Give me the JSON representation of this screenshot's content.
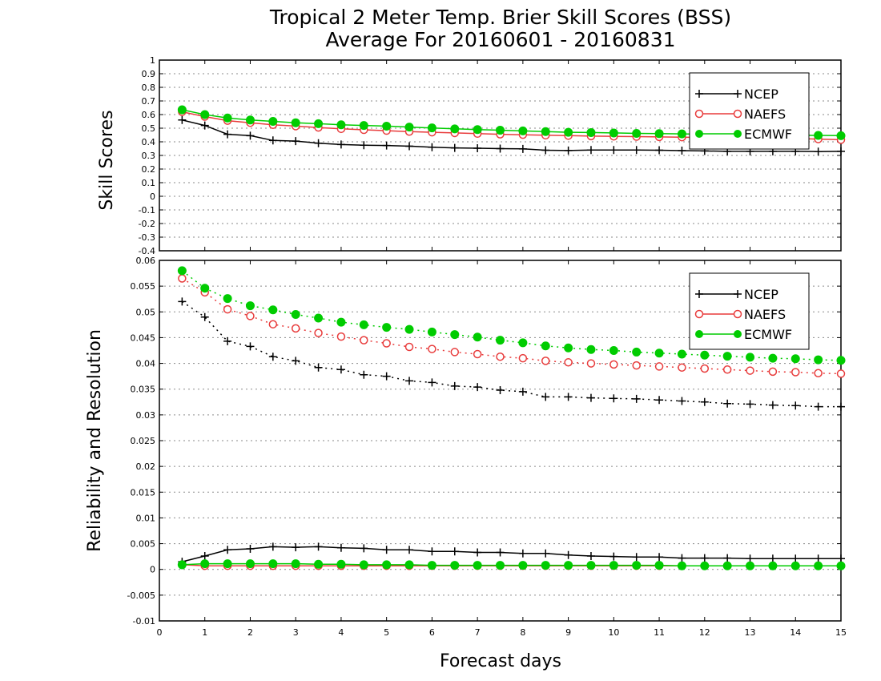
{
  "chart_data": {
    "title": "Tropical 2 Meter Temp. Brier Skill Scores (BSS)",
    "subtitle": "Average For 20160601 - 20160831",
    "xlabel": "Forecast days",
    "xlim": [
      0,
      15
    ],
    "x_ticks": [
      "0",
      "1",
      "2",
      "3",
      "4",
      "5",
      "6",
      "7",
      "8",
      "9",
      "10",
      "11",
      "12",
      "13",
      "14",
      "15"
    ],
    "x": [
      0.5,
      1,
      1.5,
      2,
      2.5,
      3,
      3.5,
      4,
      4.5,
      5,
      5.5,
      6,
      6.5,
      7,
      7.5,
      8,
      8.5,
      9,
      9.5,
      10,
      10.5,
      11,
      11.5,
      12,
      12.5,
      13,
      13.5,
      14,
      14.5,
      15
    ],
    "colors": {
      "NCEP": "#000000",
      "NAEFS": "#e83c3c",
      "ECMWF": "#00cc00"
    },
    "panels": [
      {
        "type": "line",
        "ylabel": "Skill Scores",
        "ylim": [
          -0.4,
          1
        ],
        "y_ticks": [
          "-0.4",
          "-0.3",
          "-0.2",
          "-0.1",
          "0",
          "0.1",
          "0.2",
          "0.3",
          "0.4",
          "0.5",
          "0.6",
          "0.7",
          "0.8",
          "0.9",
          "1"
        ],
        "grid": "horizontal dotted",
        "legend": "top-right",
        "legend_entries": [
          "NCEP",
          "NAEFS",
          "ECMWF"
        ],
        "series": [
          {
            "name": "NCEP",
            "marker": "plus",
            "style": "solid",
            "values": [
              0.56,
              0.52,
              0.455,
              0.445,
              0.41,
              0.405,
              0.39,
              0.38,
              0.375,
              0.373,
              0.368,
              0.36,
              0.355,
              0.353,
              0.35,
              0.348,
              0.338,
              0.336,
              0.34,
              0.34,
              0.34,
              0.338,
              0.335,
              0.333,
              0.33,
              0.33,
              0.33,
              0.33,
              0.328,
              0.33
            ]
          },
          {
            "name": "NAEFS",
            "marker": "open-circle",
            "style": "solid",
            "values": [
              0.62,
              0.585,
              0.555,
              0.54,
              0.525,
              0.515,
              0.505,
              0.495,
              0.488,
              0.482,
              0.475,
              0.47,
              0.465,
              0.46,
              0.455,
              0.452,
              0.448,
              0.445,
              0.442,
              0.44,
              0.438,
              0.436,
              0.434,
              0.432,
              0.43,
              0.428,
              0.426,
              0.424,
              0.42,
              0.415
            ]
          },
          {
            "name": "ECMWF",
            "marker": "filled-circle",
            "style": "solid",
            "values": [
              0.635,
              0.6,
              0.575,
              0.56,
              0.55,
              0.54,
              0.533,
              0.525,
              0.52,
              0.515,
              0.508,
              0.502,
              0.495,
              0.49,
              0.485,
              0.48,
              0.475,
              0.47,
              0.468,
              0.465,
              0.462,
              0.46,
              0.458,
              0.456,
              0.455,
              0.452,
              0.45,
              0.448,
              0.447,
              0.445
            ]
          }
        ]
      },
      {
        "type": "line",
        "ylabel": "Reliability and Resolution",
        "ylim": [
          -0.01,
          0.06
        ],
        "y_ticks": [
          "-0.01",
          "-0.005",
          "0",
          "0.005",
          "0.01",
          "0.015",
          "0.02",
          "0.025",
          "0.03",
          "0.035",
          "0.04",
          "0.045",
          "0.05",
          "0.055",
          "0.06"
        ],
        "grid": "horizontal dotted",
        "legend": "top-right",
        "legend_entries": [
          "NCEP",
          "NAEFS",
          "ECMWF"
        ],
        "series": [
          {
            "name": "NCEP",
            "group": "resolution",
            "marker": "plus",
            "style": "dotted",
            "values": [
              0.052,
              0.049,
              0.0443,
              0.0433,
              0.0413,
              0.0405,
              0.0392,
              0.0388,
              0.0378,
              0.0375,
              0.0366,
              0.0363,
              0.0356,
              0.0354,
              0.0348,
              0.0345,
              0.0335,
              0.0335,
              0.0333,
              0.0332,
              0.0331,
              0.0329,
              0.0327,
              0.0325,
              0.0322,
              0.0321,
              0.0319,
              0.0318,
              0.0316,
              0.0316
            ]
          },
          {
            "name": "NAEFS",
            "group": "resolution",
            "marker": "open-circle",
            "style": "dotted",
            "values": [
              0.0565,
              0.0538,
              0.0505,
              0.0492,
              0.0476,
              0.0468,
              0.0459,
              0.0452,
              0.0445,
              0.0439,
              0.0432,
              0.0428,
              0.0422,
              0.0418,
              0.0413,
              0.041,
              0.0405,
              0.0402,
              0.04,
              0.0398,
              0.0396,
              0.0394,
              0.0392,
              0.039,
              0.0388,
              0.0386,
              0.0384,
              0.0383,
              0.0381,
              0.038
            ]
          },
          {
            "name": "ECMWF",
            "group": "resolution",
            "marker": "filled-circle",
            "style": "dotted",
            "values": [
              0.058,
              0.0546,
              0.0526,
              0.0512,
              0.0504,
              0.0495,
              0.0488,
              0.048,
              0.0475,
              0.047,
              0.0466,
              0.0461,
              0.0456,
              0.0451,
              0.0445,
              0.044,
              0.0434,
              0.043,
              0.0427,
              0.0425,
              0.0422,
              0.042,
              0.0418,
              0.0416,
              0.0414,
              0.0412,
              0.041,
              0.0409,
              0.0407,
              0.0406
            ]
          },
          {
            "name": "NCEP",
            "group": "reliability",
            "marker": "plus",
            "style": "solid",
            "values": [
              0.0015,
              0.0026,
              0.0038,
              0.004,
              0.0044,
              0.0043,
              0.0044,
              0.0042,
              0.0041,
              0.0038,
              0.0038,
              0.0035,
              0.0035,
              0.0033,
              0.0033,
              0.0031,
              0.0031,
              0.0028,
              0.0026,
              0.0025,
              0.0024,
              0.0024,
              0.0022,
              0.0022,
              0.0022,
              0.0021,
              0.0021,
              0.0021,
              0.0021,
              0.0021
            ]
          },
          {
            "name": "NAEFS",
            "group": "reliability",
            "marker": "open-circle",
            "style": "solid",
            "values": [
              0.0009,
              0.0007,
              0.0007,
              0.0007,
              0.0007,
              0.0007,
              0.0007,
              0.0007,
              0.0007,
              0.0007,
              0.0007,
              0.0007,
              0.0007,
              0.0007,
              0.0007,
              0.0007,
              0.0007,
              0.0007,
              0.0007,
              0.0007,
              0.0007,
              0.0007,
              0.0007,
              0.0007,
              0.0007,
              0.0007,
              0.0007,
              0.0007,
              0.0007,
              0.0007
            ]
          },
          {
            "name": "ECMWF",
            "group": "reliability",
            "marker": "filled-circle",
            "style": "solid",
            "values": [
              0.0009,
              0.0011,
              0.0011,
              0.0011,
              0.0011,
              0.0011,
              0.001,
              0.001,
              0.0009,
              0.0009,
              0.0009,
              0.0008,
              0.0008,
              0.0008,
              0.0008,
              0.0008,
              0.0008,
              0.0008,
              0.0008,
              0.0008,
              0.0008,
              0.0008,
              0.0007,
              0.0007,
              0.0007,
              0.0007,
              0.0007,
              0.0007,
              0.0007,
              0.0007
            ]
          }
        ]
      }
    ]
  }
}
